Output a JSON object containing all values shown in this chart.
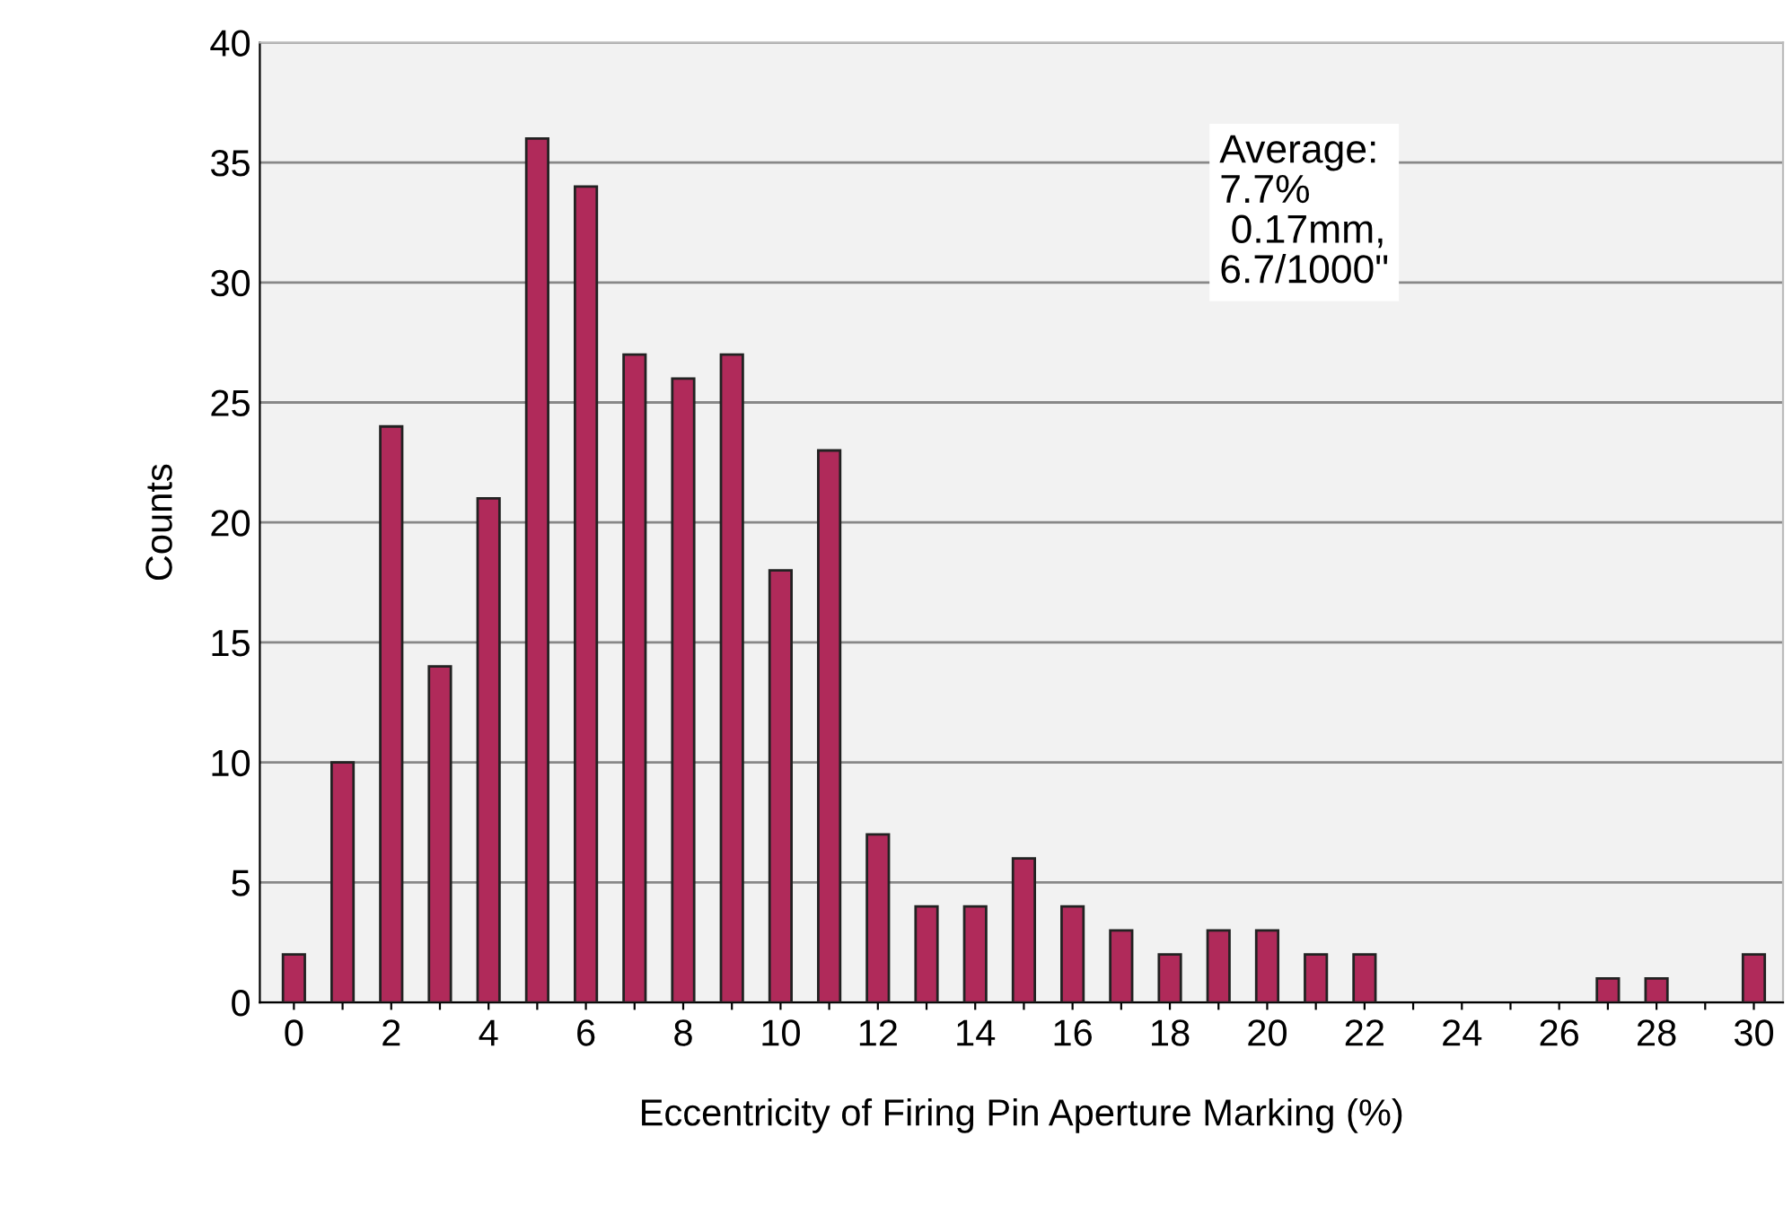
{
  "chart_data": {
    "type": "bar",
    "xlabel": "Eccentricity of Firing Pin Aperture Marking (%)",
    "ylabel": "Counts",
    "categories": [
      "0",
      null,
      "2",
      null,
      "4",
      null,
      "6",
      null,
      "8",
      null,
      "10",
      null,
      "12",
      null,
      "14",
      null,
      "16",
      null,
      "18",
      null,
      "20",
      null,
      "22",
      null,
      "24",
      null,
      "26",
      null,
      "28",
      null,
      "30"
    ],
    "values": [
      2,
      10,
      24,
      14,
      21,
      36,
      34,
      27,
      26,
      27,
      18,
      23,
      7,
      4,
      4,
      6,
      4,
      3,
      2,
      3,
      3,
      2,
      2,
      0,
      0,
      0,
      0,
      1,
      1,
      0,
      2
    ],
    "color": "#b02a5a",
    "ylim": [
      0,
      40
    ],
    "yticks": [
      0,
      5,
      10,
      15,
      20,
      25,
      30,
      35,
      40
    ],
    "grid": "y",
    "annotations": [
      "Average:\n7.7%\n 0.17mm,\n6.7/1000\""
    ]
  }
}
